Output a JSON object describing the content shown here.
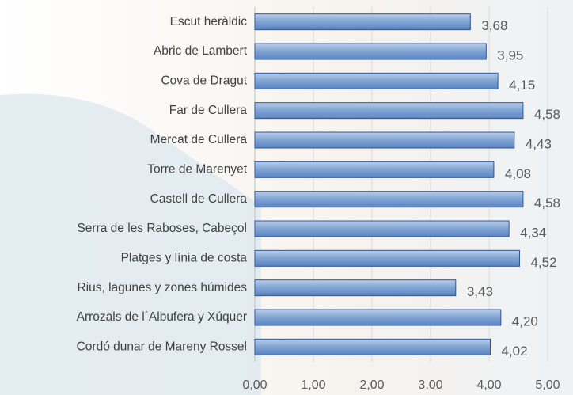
{
  "chart_data": {
    "type": "bar",
    "orientation": "horizontal",
    "categories": [
      "Escut heràldic",
      "Abric de Lambert",
      "Cova de Dragut",
      "Far de Cullera",
      "Mercat de Cullera",
      "Torre de Marenyet",
      "Castell de Cullera",
      "Serra de les Raboses, Cabeçol",
      "Platges y línia de costa",
      "Rius, lagunes y zones húmides",
      "Arrozals de l´Albufera y Xúquer",
      "Cordó dunar de Mareny Rossel"
    ],
    "values": [
      3.68,
      3.95,
      4.15,
      4.58,
      4.43,
      4.08,
      4.58,
      4.34,
      4.52,
      3.43,
      4.2,
      4.02
    ],
    "value_labels": [
      "3,68",
      "3,95",
      "4,15",
      "4,58",
      "4,43",
      "4,08",
      "4,58",
      "4,34",
      "4,52",
      "3,43",
      "4,20",
      "4,02"
    ],
    "color": "#4f81bd",
    "xlim": [
      0,
      5
    ],
    "xticks": [
      {
        "value": 0,
        "label": "0,00"
      },
      {
        "value": 1,
        "label": "1,00"
      },
      {
        "value": 2,
        "label": "2,00"
      },
      {
        "value": 3,
        "label": "3,00"
      },
      {
        "value": 4,
        "label": "4,00"
      },
      {
        "value": 5,
        "label": "5,00"
      }
    ],
    "grid": true
  }
}
